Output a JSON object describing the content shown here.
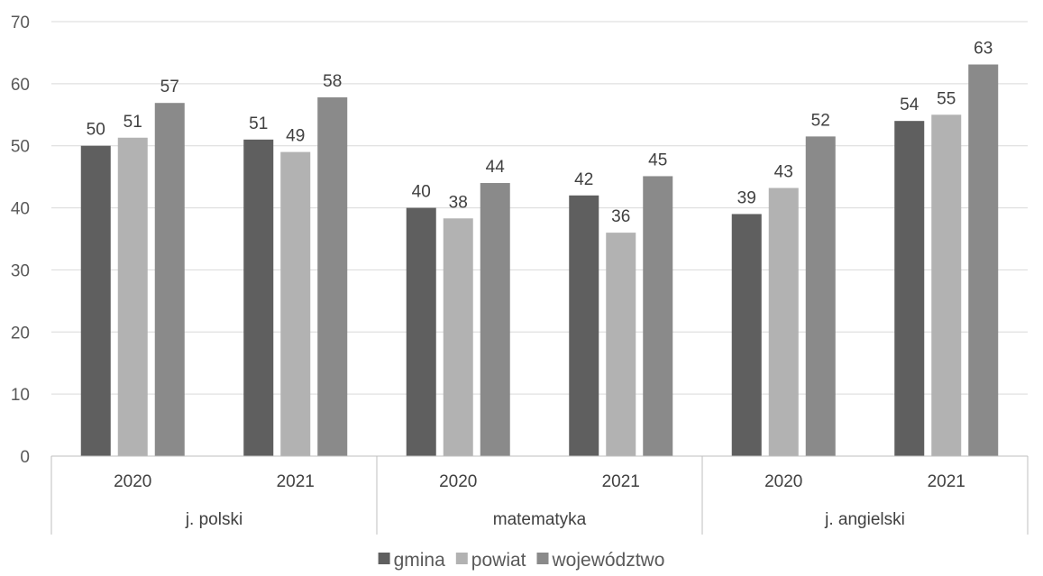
{
  "chart_data": {
    "type": "bar",
    "groups": [
      "j. polski",
      "matematyka",
      "j. angielski"
    ],
    "categories": [
      "2020",
      "2021",
      "2020",
      "2021",
      "2020",
      "2021"
    ],
    "series": [
      {
        "name": "gmina",
        "values": [
          50,
          51,
          40,
          42,
          39,
          54
        ],
        "labels": [
          "50",
          "51",
          "40",
          "42",
          "39",
          "54"
        ],
        "color": "#5f5f5f"
      },
      {
        "name": "powiat",
        "values": [
          51.3,
          49,
          38.3,
          36,
          43.2,
          55
        ],
        "labels": [
          "51",
          "49",
          "38",
          "36",
          "43",
          "55"
        ],
        "color": "#b2b2b2"
      },
      {
        "name": "województwo",
        "values": [
          56.9,
          57.8,
          44,
          45.1,
          51.5,
          63.1
        ],
        "labels": [
          "57",
          "58",
          "44",
          "45",
          "52",
          "63"
        ],
        "color": "#8a8a8a"
      }
    ],
    "ylim": [
      0,
      70
    ],
    "yticks": [
      "0",
      "10",
      "20",
      "30",
      "40",
      "50",
      "60",
      "70"
    ],
    "grid": true,
    "legend_position": "bottom",
    "colors": {
      "gridline": "#d9d9d9",
      "axis": "#bfbfbf"
    }
  }
}
